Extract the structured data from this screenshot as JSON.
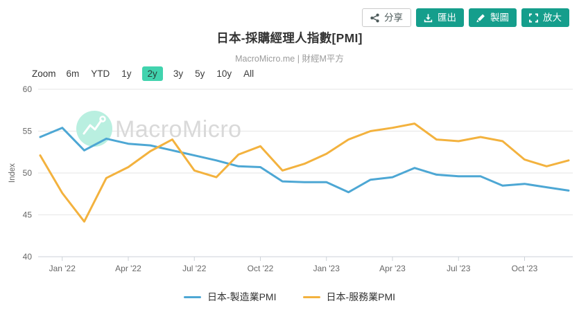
{
  "toolbar": {
    "share_label": "分享",
    "export_label": "匯出",
    "draw_label": "製圖",
    "enlarge_label": "放大",
    "accent_color": "#159e8c"
  },
  "header": {
    "title": "日本-採購經理人指數[PMI]",
    "subtitle": "MacroMicro.me | 財經M平方"
  },
  "range_selector": {
    "label": "Zoom",
    "options": [
      "6m",
      "YTD",
      "1y",
      "2y",
      "3y",
      "5y",
      "10y",
      "All"
    ],
    "selected": "2y",
    "selected_bg": "#41d3ae"
  },
  "watermark": {
    "text": "MacroMicro",
    "circle_color": "#b9efe0",
    "text_color": "#d9d9d9"
  },
  "chart_data": {
    "type": "line",
    "title": "日本-採購經理人指數[PMI]",
    "subtitle": "MacroMicro.me | 財經M平方",
    "ylabel": "Index",
    "xlabel": "",
    "ylim": [
      40,
      60
    ],
    "yticks": [
      40,
      45,
      50,
      55,
      60
    ],
    "grid": "horizontal-only",
    "legend_position": "bottom",
    "x": [
      "Dec '21",
      "Jan '22",
      "Feb '22",
      "Mar '22",
      "Apr '22",
      "May '22",
      "Jun '22",
      "Jul '22",
      "Aug '22",
      "Sep '22",
      "Oct '22",
      "Nov '22",
      "Dec '22",
      "Jan '23",
      "Feb '23",
      "Mar '23",
      "Apr '23",
      "May '23",
      "Jun '23",
      "Jul '23",
      "Aug '23",
      "Sep '23",
      "Oct '23",
      "Nov '23",
      "Dec '23"
    ],
    "xtick_every_months": 3,
    "xtick_labels": [
      "Jan '22",
      "Apr '22",
      "Jul '22",
      "Oct '22",
      "Jan '23",
      "Apr '23",
      "Jul '23",
      "Oct '23"
    ],
    "series": [
      {
        "name": "日本-製造業PMI",
        "color": "#4da7d4",
        "values": [
          54.3,
          55.4,
          52.7,
          54.1,
          53.5,
          53.3,
          52.7,
          52.1,
          51.5,
          50.8,
          50.7,
          49.0,
          48.9,
          48.9,
          47.7,
          49.2,
          49.5,
          50.6,
          49.8,
          49.6,
          49.6,
          48.5,
          48.7,
          48.3,
          47.9
        ]
      },
      {
        "name": "日本-服務業PMI",
        "color": "#f3b23e",
        "values": [
          52.1,
          47.6,
          44.2,
          49.4,
          50.7,
          52.6,
          54.0,
          50.3,
          49.5,
          52.2,
          53.2,
          50.3,
          51.1,
          52.3,
          54.0,
          55.0,
          55.4,
          55.9,
          54.0,
          53.8,
          54.3,
          53.8,
          51.6,
          50.8,
          51.5
        ]
      }
    ]
  }
}
